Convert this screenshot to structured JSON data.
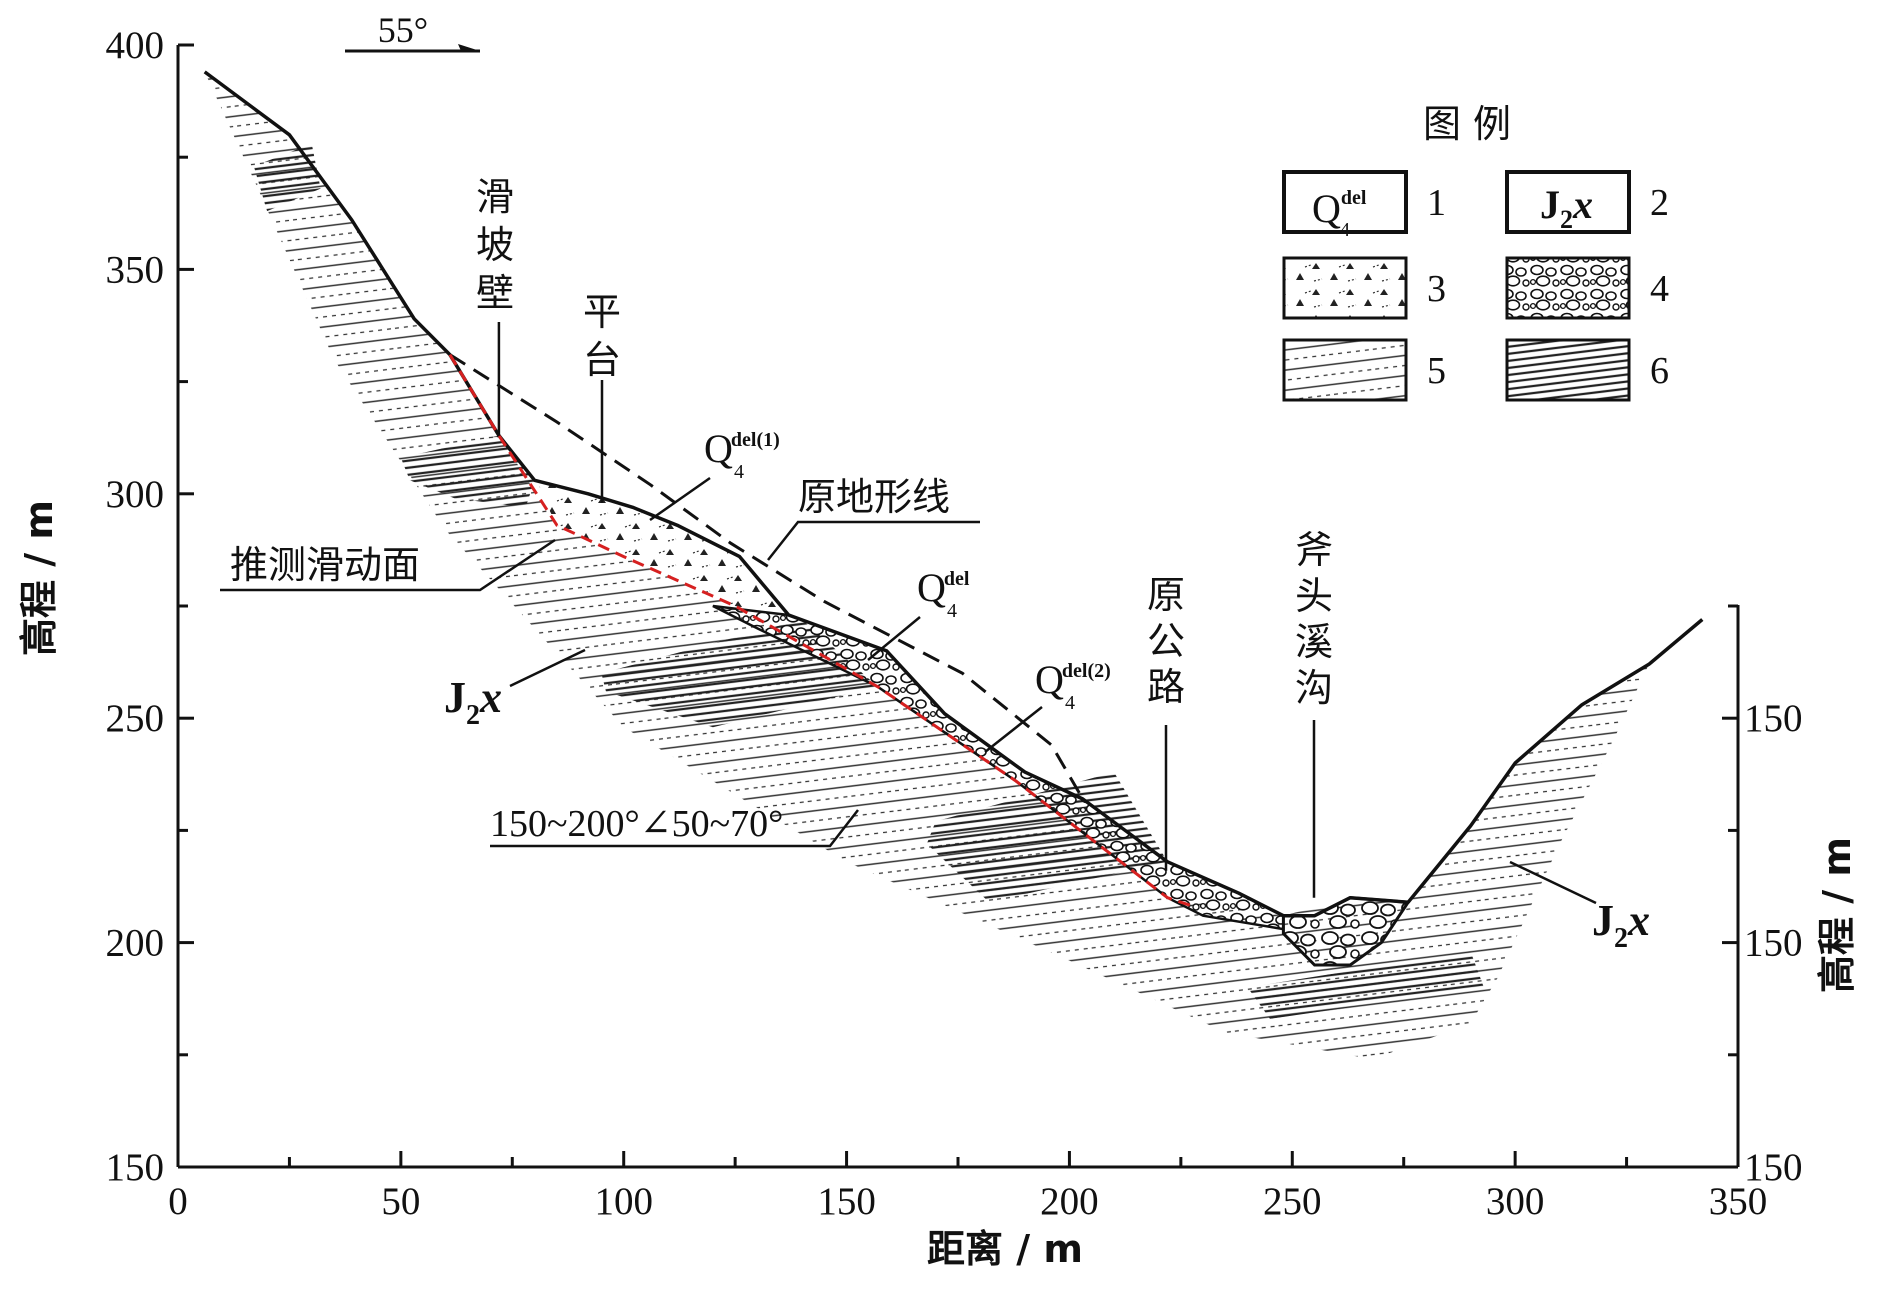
{
  "chart_data": {
    "type": "diagram",
    "title": "",
    "direction_label": "55°",
    "x_axis": {
      "label": "距离 / m",
      "range": [
        0,
        350
      ],
      "ticks": [
        "0",
        "50",
        "100",
        "150",
        "200",
        "250",
        "300",
        "350"
      ]
    },
    "y_axis_left": {
      "label": "高程 / m",
      "range": [
        150,
        400
      ],
      "ticks": [
        "150",
        "200",
        "250",
        "300",
        "350",
        "400"
      ]
    },
    "y_axis_right": {
      "label": "高程 / m",
      "ticks": [
        "150",
        "150",
        "150",
        "150"
      ]
    },
    "profile_labels": {
      "landslide_wall": [
        "滑",
        "坡",
        "壁"
      ],
      "platform": [
        "平",
        "台"
      ],
      "original_terrain": "原地形线",
      "sliding_surface": "推测滑动面",
      "bedrock_left": "J2x",
      "bedrock_right": "J2x",
      "dip_attitude": "150~200°∠50~70°",
      "q4del1": "Q4del(1)",
      "q4del": "Q4del",
      "q4del2": "Q4del(2)",
      "old_road": [
        "原",
        "公",
        "路"
      ],
      "gully": [
        "斧",
        "头",
        "溪",
        "沟"
      ]
    },
    "legend": {
      "title": "图   例",
      "items": [
        {
          "num": "1",
          "symbol": "Q4del"
        },
        {
          "num": "2",
          "symbol": "J2x"
        },
        {
          "num": "3",
          "symbol": "rubble"
        },
        {
          "num": "4",
          "symbol": "boulder"
        },
        {
          "num": "5",
          "symbol": "sandstone"
        },
        {
          "num": "6",
          "symbol": "mudstone"
        }
      ]
    },
    "ground_profile": [
      [
        6,
        394
      ],
      [
        25,
        380
      ],
      [
        39,
        361
      ],
      [
        53,
        339
      ],
      [
        61,
        331
      ],
      [
        72,
        313
      ],
      [
        80,
        303
      ],
      [
        92,
        300
      ],
      [
        102,
        297
      ],
      [
        112,
        293
      ],
      [
        126,
        286
      ],
      [
        137,
        273
      ],
      [
        159,
        265
      ],
      [
        172,
        251
      ],
      [
        190,
        238
      ],
      [
        203,
        232
      ],
      [
        222,
        218
      ],
      [
        238,
        211
      ],
      [
        248,
        206
      ],
      [
        255,
        206
      ],
      [
        263,
        210
      ],
      [
        276,
        209
      ],
      [
        290,
        226
      ],
      [
        300,
        240
      ],
      [
        315,
        253
      ],
      [
        330,
        262
      ],
      [
        342,
        272
      ]
    ],
    "original_terrain_line": [
      [
        61,
        331
      ],
      [
        85,
        316
      ],
      [
        106,
        302
      ],
      [
        124,
        289
      ],
      [
        145,
        276
      ],
      [
        176,
        260
      ],
      [
        196,
        244
      ],
      [
        203,
        232
      ]
    ],
    "sliding_surface_line": [
      [
        61,
        331
      ],
      [
        72,
        313
      ],
      [
        85,
        293
      ],
      [
        100,
        286
      ],
      [
        125,
        275
      ],
      [
        157,
        257
      ],
      [
        188,
        236
      ],
      [
        222,
        210
      ],
      [
        228,
        208
      ]
    ]
  }
}
